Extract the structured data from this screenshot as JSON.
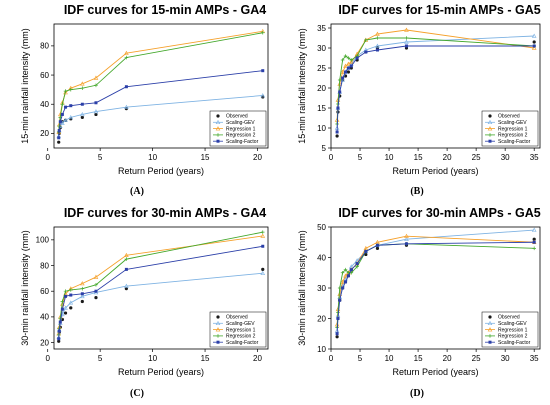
{
  "legend_labels": [
    "Observed",
    "Scaling-GEV",
    "Regression 1",
    "Regression 2",
    "Scaling-Factor"
  ],
  "colors": {
    "observed": "#1a1a1a",
    "scaling_gev": "#7fb3e3",
    "regression_1": "#f5a02a",
    "regression_2": "#44a82c",
    "scaling_factor": "#2b3fa8"
  },
  "chart_data": [
    {
      "type": "line",
      "title": "IDF curves for 15-min AMPs - GA4",
      "xlabel": "Return Period (years)",
      "ylabel": "15-min rainfall intensity (mm)",
      "caption": "(A)",
      "xlim": [
        0.6,
        21
      ],
      "ylim": [
        10,
        95
      ],
      "xticks": [
        0,
        5,
        10,
        15,
        20
      ],
      "yticks": [
        20,
        40,
        60,
        80
      ],
      "x": [
        1.05,
        1.1,
        1.2,
        1.4,
        1.7,
        2.2,
        3.3,
        4.6,
        7.5,
        20.5
      ],
      "series": [
        {
          "name": "Observed",
          "style": "points",
          "values": [
            14,
            20,
            24,
            28,
            29,
            30,
            31,
            33,
            37,
            45
          ]
        },
        {
          "name": "Scaling-GEV",
          "style": "line",
          "values": [
            18,
            22,
            25,
            27,
            29,
            31,
            33,
            35,
            38,
            46
          ]
        },
        {
          "name": "Regression 1",
          "style": "line",
          "values": [
            21,
            26,
            33,
            41,
            48,
            51,
            54,
            58,
            75,
            90
          ]
        },
        {
          "name": "Regression 2",
          "style": "line",
          "values": [
            21,
            25,
            31,
            40,
            49,
            50,
            51,
            53,
            72,
            89
          ]
        },
        {
          "name": "Scaling-Factor",
          "style": "line",
          "values": [
            17,
            22,
            28,
            33,
            38,
            39,
            40,
            41,
            52,
            63
          ]
        }
      ]
    },
    {
      "type": "line",
      "title": "IDF curves for 15-min AMPs - GA5",
      "xlabel": "Return Period (years)",
      "ylabel": "15-min rainfall intensity (mm)",
      "caption": "(B)",
      "xlim": [
        0,
        36
      ],
      "ylim": [
        5,
        36
      ],
      "xticks": [
        0,
        5,
        10,
        15,
        20,
        25,
        30,
        35
      ],
      "yticks": [
        5,
        10,
        15,
        20,
        25,
        30,
        35
      ],
      "x": [
        1.05,
        1.2,
        1.5,
        2.0,
        2.5,
        3.0,
        3.5,
        4.5,
        6.0,
        8.0,
        13.0,
        35.0
      ],
      "series": [
        {
          "name": "Observed",
          "style": "points",
          "values": [
            8,
            14,
            18,
            22,
            23,
            24,
            25,
            27,
            29,
            30,
            30,
            31.5
          ]
        },
        {
          "name": "Scaling-GEV",
          "style": "line",
          "values": [
            10,
            15,
            19,
            22,
            24,
            25,
            26,
            28,
            29.5,
            30.5,
            31.5,
            33
          ]
        },
        {
          "name": "Regression 1",
          "style": "line",
          "values": [
            12,
            17,
            21,
            24,
            25.5,
            26,
            26.5,
            28.5,
            32,
            33.5,
            34.5,
            30
          ]
        },
        {
          "name": "Regression 2",
          "style": "line",
          "values": [
            11,
            16,
            22,
            27,
            28,
            27.5,
            27,
            28,
            32,
            32.5,
            32.5,
            30.5
          ]
        },
        {
          "name": "Scaling-Factor",
          "style": "line",
          "values": [
            9,
            15,
            19,
            22.5,
            24,
            25,
            25.5,
            27.5,
            29,
            29.5,
            30.5,
            30.5
          ]
        }
      ]
    },
    {
      "type": "line",
      "title": "IDF curves for 30-min AMPs - GA4",
      "xlabel": "Return Period (years)",
      "ylabel": "30-min rainfall intensity (mm)",
      "caption": "(C)",
      "xlim": [
        0.6,
        21
      ],
      "ylim": [
        15,
        110
      ],
      "xticks": [
        0,
        5,
        10,
        15,
        20
      ],
      "yticks": [
        20,
        40,
        60,
        80,
        100
      ],
      "x": [
        1.05,
        1.1,
        1.2,
        1.4,
        1.7,
        2.2,
        3.3,
        4.6,
        7.5,
        20.5
      ],
      "series": [
        {
          "name": "Observed",
          "style": "points",
          "values": [
            21,
            28,
            32,
            38,
            43,
            47,
            52,
            55,
            62,
            77
          ]
        },
        {
          "name": "Scaling-GEV",
          "style": "line",
          "values": [
            24,
            30,
            35,
            42,
            47,
            51,
            56,
            59,
            64,
            74
          ]
        },
        {
          "name": "Regression 1",
          "style": "line",
          "values": [
            27,
            32,
            40,
            50,
            58,
            62,
            66,
            71,
            88,
            103
          ]
        },
        {
          "name": "Regression 2",
          "style": "line",
          "values": [
            26,
            31,
            39,
            52,
            60,
            61,
            62,
            65,
            85,
            106
          ]
        },
        {
          "name": "Scaling-Factor",
          "style": "line",
          "values": [
            23,
            29,
            36,
            46,
            56,
            57,
            58,
            60,
            77,
            95
          ]
        }
      ]
    },
    {
      "type": "line",
      "title": "IDF curves for 30-min AMPs - GA5",
      "xlabel": "Return Period (years)",
      "ylabel": "30-min rainfall intensity (mm)",
      "caption": "(D)",
      "xlim": [
        0,
        36
      ],
      "ylim": [
        10,
        50
      ],
      "xticks": [
        0,
        5,
        10,
        15,
        20,
        25,
        30,
        35
      ],
      "yticks": [
        10,
        20,
        30,
        40,
        50
      ],
      "x": [
        1.05,
        1.2,
        1.5,
        2.0,
        2.5,
        3.0,
        3.5,
        4.5,
        6.0,
        8.0,
        13.0,
        35.0
      ],
      "series": [
        {
          "name": "Observed",
          "style": "points",
          "values": [
            14,
            20,
            26,
            30,
            32,
            34,
            36,
            38,
            41,
            43,
            44,
            46
          ]
        },
        {
          "name": "Scaling-GEV",
          "style": "line",
          "values": [
            16,
            21,
            27,
            31,
            33,
            35,
            37,
            39,
            42,
            44,
            46,
            49
          ]
        },
        {
          "name": "Regression 1",
          "style": "line",
          "values": [
            18,
            23,
            28,
            32,
            34,
            35,
            36,
            38,
            43,
            45,
            47,
            45
          ]
        },
        {
          "name": "Regression 2",
          "style": "line",
          "values": [
            17,
            22,
            30,
            35,
            36,
            35,
            35,
            37,
            42,
            44,
            44.5,
            43
          ]
        },
        {
          "name": "Scaling-Factor",
          "style": "line",
          "values": [
            15,
            20,
            26,
            30,
            32,
            34,
            36,
            38,
            42,
            44,
            44.5,
            45
          ]
        }
      ]
    }
  ]
}
